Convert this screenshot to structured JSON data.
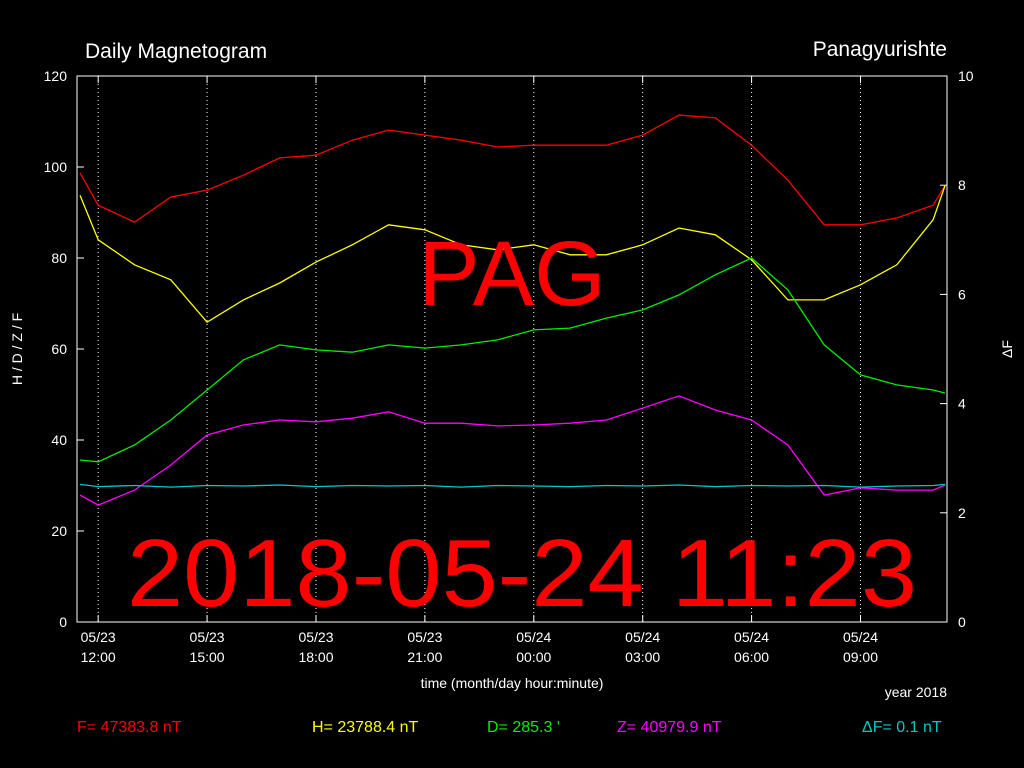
{
  "chart_data": {
    "type": "line",
    "title": "Daily Magnetogram",
    "subtitle": "Panagyurishte",
    "xlabel": "time (month/day hour:minute)",
    "ylabel": "H / D / Z / F",
    "y2label": "ΔF",
    "year_note": "year 2018",
    "station_overlay": "PAG",
    "timestamp_overlay": "2018-05-24 11:23",
    "background": "#000000",
    "grid": "x",
    "xlim": [
      "05/23 11:25",
      "05/24 11:23"
    ],
    "xticks": [
      "05/23 12:00",
      "05/23 15:00",
      "05/23 18:00",
      "05/23 21:00",
      "05/24 00:00",
      "05/24 03:00",
      "05/24 06:00",
      "05/24 09:00"
    ],
    "ylim": [
      0,
      120
    ],
    "yticks": [
      0,
      20,
      40,
      60,
      80,
      100,
      120
    ],
    "y2lim": [
      0,
      10
    ],
    "y2ticks": [
      0,
      2,
      4,
      6,
      8,
      10
    ],
    "x": [
      "05/23 11:30",
      "05/23 12:00",
      "05/23 13:00",
      "05/23 14:00",
      "05/23 15:00",
      "05/23 16:00",
      "05/23 17:00",
      "05/23 18:00",
      "05/23 19:00",
      "05/23 20:00",
      "05/23 21:00",
      "05/23 22:00",
      "05/23 23:00",
      "05/24 00:00",
      "05/24 01:00",
      "05/24 02:00",
      "05/24 03:00",
      "05/24 04:00",
      "05/24 05:00",
      "05/24 06:00",
      "05/24 07:00",
      "05/24 08:00",
      "05/24 09:00",
      "05/24 10:00",
      "05/24 11:00",
      "05/24 11:20"
    ],
    "series": [
      {
        "color": "#ff0000",
        "values": [
          98.7,
          91.6,
          87.9,
          93.4,
          94.9,
          98.2,
          102,
          102.6,
          105.9,
          108.1,
          107,
          105.9,
          104.4,
          104.8,
          104.8,
          104.8,
          107,
          111.4,
          110.8,
          104.8,
          97.1,
          87.3,
          87.3,
          88.8,
          91.6,
          96
        ]
      },
      {
        "color": "#ffff00",
        "values": [
          93.8,
          84,
          78.5,
          75.2,
          65.9,
          70.8,
          74.5,
          79.1,
          82.9,
          87.3,
          86.2,
          82.9,
          81.8,
          82.9,
          80.7,
          80.7,
          82.9,
          86.6,
          85.1,
          79.6,
          70.8,
          70.8,
          74.1,
          78.5,
          88.4,
          96
        ]
      },
      {
        "color": "#00ee00",
        "values": [
          35.6,
          35.2,
          38.9,
          44.4,
          51,
          57.6,
          60.9,
          59.8,
          59.3,
          60.9,
          60.2,
          60.9,
          62,
          64.2,
          64.6,
          66.8,
          68.6,
          71.9,
          76.3,
          80,
          73,
          60.9,
          54.3,
          52.1,
          51,
          50.3
        ]
      },
      {
        "color": "#ff00ff",
        "values": [
          27.9,
          25.7,
          29,
          34.5,
          41.1,
          43.3,
          44.4,
          44,
          44.8,
          46.2,
          43.7,
          43.7,
          43.1,
          43.3,
          43.7,
          44.4,
          47,
          49.7,
          46.6,
          44.4,
          38.9,
          27.9,
          29.5,
          29,
          29,
          30.1
        ]
      },
      {
        "color": "#00c8c8",
        "axis": "y2",
        "values": [
          2.52,
          2.48,
          2.5,
          2.47,
          2.5,
          2.49,
          2.51,
          2.48,
          2.5,
          2.49,
          2.5,
          2.47,
          2.5,
          2.49,
          2.48,
          2.5,
          2.49,
          2.51,
          2.48,
          2.5,
          2.49,
          2.5,
          2.47,
          2.49,
          2.5,
          2.52
        ]
      }
    ],
    "readings": [
      {
        "text": "F= 47383.8 nT",
        "color": "#ff0000"
      },
      {
        "text": "H= 23788.4 nT",
        "color": "#ffff00"
      },
      {
        "text": "D= 285.3 '",
        "color": "#00ee00"
      },
      {
        "text": "Z= 40979.9 nT",
        "color": "#ff00ff"
      },
      {
        "text": "ΔF= 0.1 nT",
        "color": "#00c8c8"
      }
    ]
  }
}
